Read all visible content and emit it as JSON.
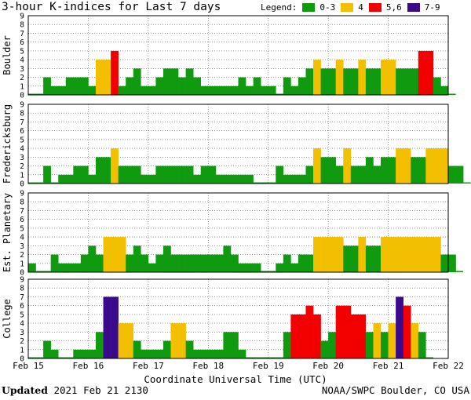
{
  "header": {
    "title": "3-hour K-indices for Last 7 days",
    "legend_label": "Legend:",
    "legend": [
      {
        "label": "0-3",
        "color": "#0f9a0f"
      },
      {
        "label": "4",
        "color": "#f2c000"
      },
      {
        "label": "5,6",
        "color": "#f20000"
      },
      {
        "label": "7-9",
        "color": "#3a0a8c"
      }
    ]
  },
  "footer": {
    "updated_label": "Updated",
    "updated_value": "2021 Feb 21 2130",
    "source": "NOAA/SWPC Boulder, CO USA"
  },
  "chart_data": {
    "type": "bar",
    "xlabel": "Coordinate Universal Time (UTC)",
    "x_tick_labels": [
      "Feb 15",
      "Feb 16",
      "Feb 17",
      "Feb 18",
      "Feb 19",
      "Feb 20",
      "Feb 21",
      "Feb 22"
    ],
    "ylim": [
      0,
      9
    ],
    "y_ticks": [
      "0",
      "1",
      "2",
      "3",
      "4",
      "5",
      "6",
      "7",
      "8",
      "9"
    ],
    "bars_per_day": 8,
    "grid": true,
    "panels": [
      {
        "name": "Boulder",
        "values": [
          0,
          0,
          2,
          1,
          1,
          2,
          2,
          2,
          1,
          4,
          4,
          5,
          1,
          2,
          3,
          1,
          1,
          2,
          3,
          3,
          2,
          3,
          2,
          1,
          1,
          1,
          1,
          1,
          2,
          1,
          2,
          1,
          1,
          0,
          2,
          1,
          2,
          3,
          4,
          3,
          3,
          4,
          3,
          3,
          4,
          3,
          3,
          4,
          4,
          3,
          3,
          3,
          5,
          5,
          2,
          1,
          0
        ]
      },
      {
        "name": "Fredericksburg",
        "values": [
          0,
          0,
          2,
          0,
          1,
          1,
          2,
          2,
          1,
          3,
          3,
          4,
          2,
          2,
          2,
          1,
          1,
          2,
          2,
          2,
          2,
          2,
          1,
          2,
          2,
          1,
          1,
          1,
          1,
          1,
          0,
          0,
          0,
          2,
          1,
          1,
          1,
          2,
          4,
          3,
          3,
          2,
          4,
          2,
          2,
          3,
          2,
          3,
          3,
          4,
          4,
          3,
          3,
          4,
          4,
          4,
          2,
          2,
          0
        ]
      },
      {
        "name": "Est. Planetary",
        "values": [
          1,
          0,
          0,
          2,
          1,
          1,
          1,
          2,
          3,
          2,
          4,
          4,
          4,
          2,
          3,
          2,
          1,
          2,
          3,
          2,
          2,
          2,
          2,
          2,
          2,
          2,
          3,
          2,
          1,
          1,
          1,
          0,
          0,
          1,
          2,
          1,
          2,
          2,
          4,
          4,
          4,
          4,
          3,
          3,
          4,
          3,
          3,
          4,
          4,
          4,
          4,
          4,
          4,
          4,
          4,
          2,
          2,
          0
        ]
      },
      {
        "name": "College",
        "values": [
          0,
          0,
          2,
          1,
          0,
          0,
          1,
          1,
          1,
          3,
          7,
          7,
          4,
          4,
          2,
          1,
          1,
          1,
          2,
          4,
          4,
          2,
          1,
          1,
          1,
          1,
          3,
          3,
          1,
          0,
          0,
          0,
          0,
          0,
          3,
          5,
          5,
          6,
          5,
          2,
          3,
          6,
          6,
          5,
          5,
          3,
          4,
          3,
          4,
          7,
          6,
          4,
          3,
          0
        ]
      }
    ]
  }
}
